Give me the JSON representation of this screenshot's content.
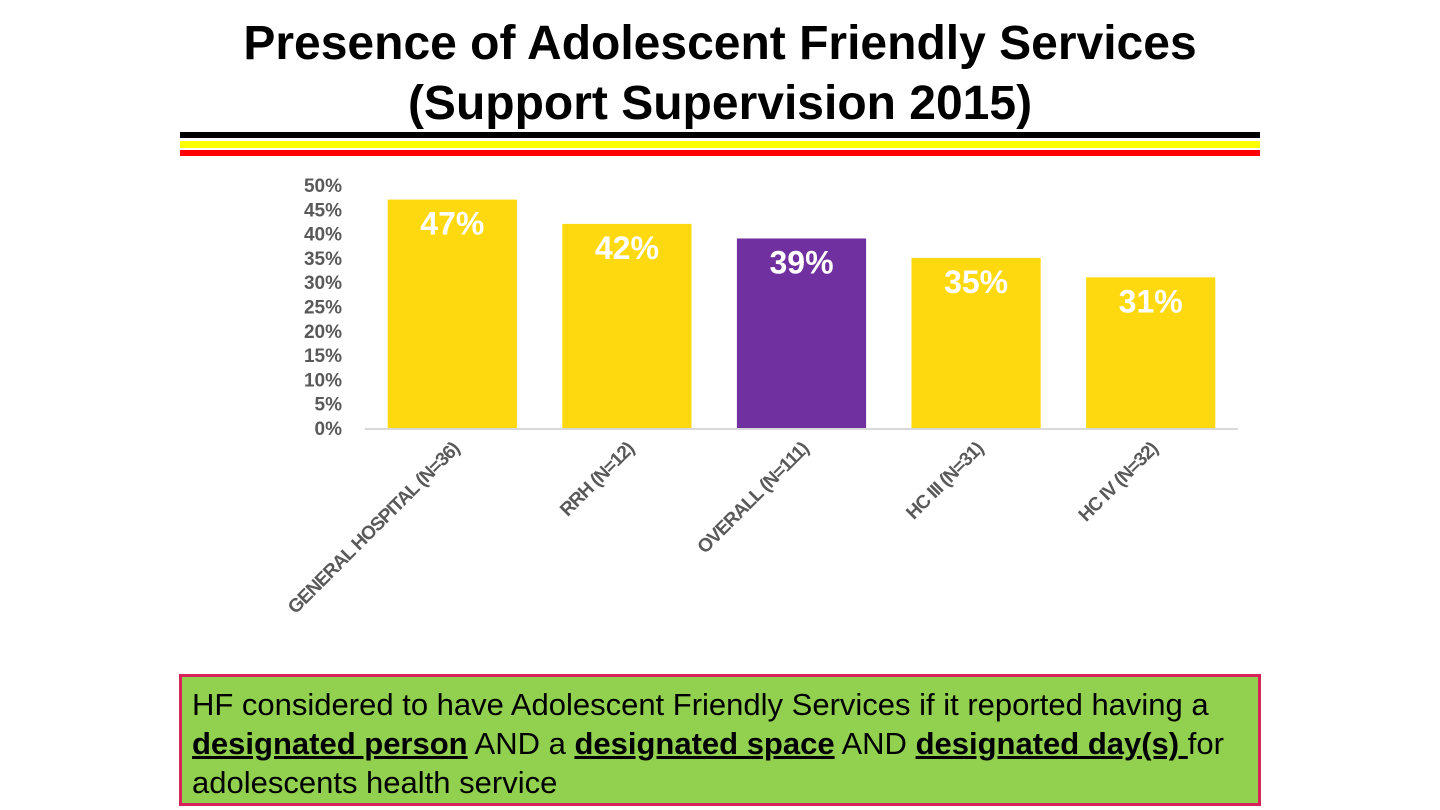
{
  "slide": {
    "title_line1": "Presence of Adolescent Friendly Services",
    "title_line2": "(Support Supervision 2015)"
  },
  "colors": {
    "stripe_black": "#000000",
    "stripe_yellow": "#ffff00",
    "stripe_red": "#ff0000",
    "bar_default": "#ffd90f",
    "bar_highlight": "#7030a0",
    "note_bg": "#92d050",
    "note_border": "#d6245a"
  },
  "chart_data": {
    "type": "bar",
    "title": "Presence of Adolescent Friendly Services (Support Supervision 2015)",
    "categories": [
      "GENERAL HOSPITAL (N=36)",
      "RRH (N=12)",
      "OVERALL (N=111)",
      "HC III (N=31)",
      "HC IV (N=32)"
    ],
    "values": [
      47,
      42,
      39,
      35,
      31
    ],
    "data_labels": [
      "47%",
      "42%",
      "39%",
      "35%",
      "31%"
    ],
    "highlight": [
      false,
      false,
      true,
      false,
      false
    ],
    "ylim": [
      0,
      50
    ],
    "yticks": [
      0,
      5,
      10,
      15,
      20,
      25,
      30,
      35,
      40,
      45,
      50
    ],
    "ytick_labels": [
      "0%",
      "5%",
      "10%",
      "15%",
      "20%",
      "25%",
      "30%",
      "35%",
      "40%",
      "45%",
      "50%"
    ],
    "xlabel": "",
    "ylabel": "",
    "grid": false,
    "legend": "none"
  },
  "note": {
    "t1": "HF considered to have Adolescent Friendly Services if it reported having a ",
    "b1": "designated person",
    "t2": " AND a ",
    "b2": "designated space",
    "t3": " AND ",
    "b3": "designated day(s) ",
    "t4": "for adolescents health service"
  }
}
